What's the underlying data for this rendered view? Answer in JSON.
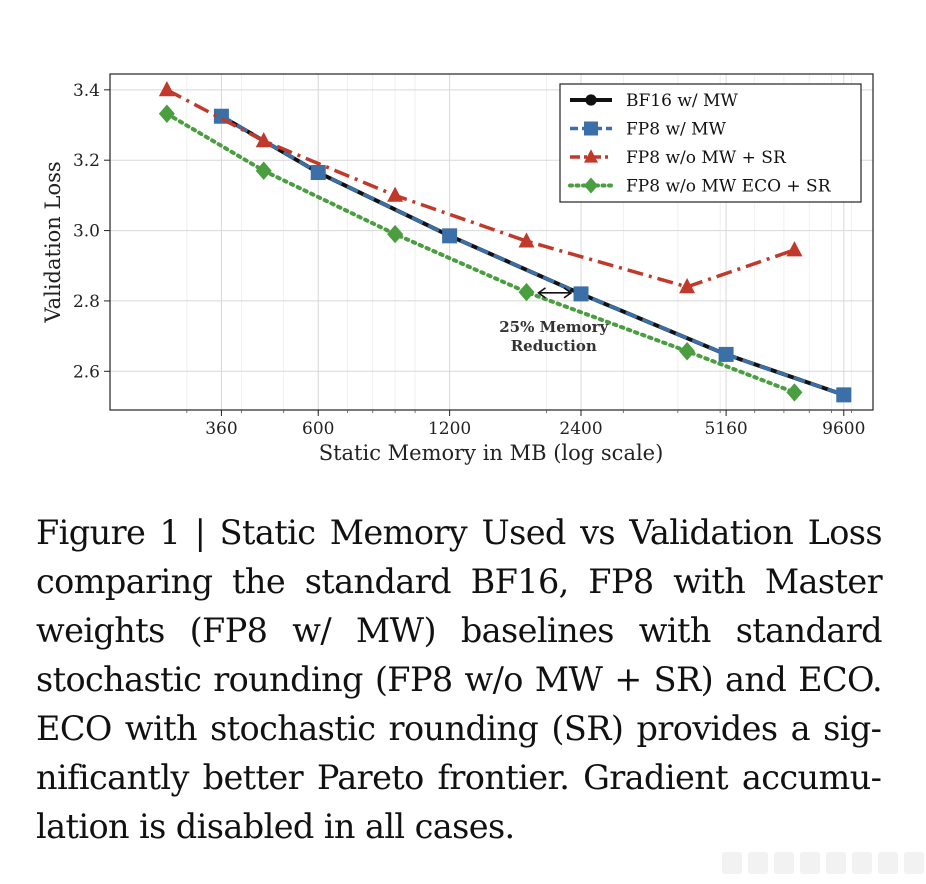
{
  "chart_data": {
    "type": "line",
    "xscale": "log",
    "xlabel": "Static Memory in MB (log scale)",
    "ylabel": "Validation Loss",
    "xticks": [
      360,
      600,
      1200,
      2400,
      5160,
      9600
    ],
    "xtick_labels": [
      "360",
      "600",
      "1200",
      "2400",
      "5160",
      "9600"
    ],
    "yticks": [
      2.6,
      2.8,
      3.0,
      3.2,
      3.4
    ],
    "ytick_labels": [
      "2.6",
      "2.8",
      "3.0",
      "3.2",
      "3.4"
    ],
    "xlim": [
      200,
      11200
    ],
    "ylim": [
      2.49,
      3.445
    ],
    "grid": true,
    "legend_position": "top-right",
    "series": [
      {
        "name": "BF16 w/ MW",
        "color": "#111111",
        "marker": "circle",
        "dash": "solid",
        "x": [
          360,
          600,
          1200,
          2400,
          5160,
          9600
        ],
        "y": [
          3.325,
          3.165,
          2.985,
          2.82,
          2.648,
          2.533
        ]
      },
      {
        "name": "FP8 w/ MW",
        "color": "#3a6fa7",
        "marker": "square",
        "dash": "dashed",
        "x": [
          360,
          600,
          1200,
          2400,
          5160,
          9600
        ],
        "y": [
          3.325,
          3.165,
          2.985,
          2.82,
          2.648,
          2.533
        ]
      },
      {
        "name": "FP8 w/o MW + SR",
        "color": "#c0392b",
        "marker": "triangle",
        "dash": "dashdot",
        "x": [
          270,
          450,
          900,
          1800,
          4200,
          7400
        ],
        "y": [
          3.4,
          3.255,
          3.1,
          2.97,
          2.84,
          2.945
        ]
      },
      {
        "name": "FP8 w/o MW ECO + SR",
        "color": "#4a9e3f",
        "marker": "diamond",
        "dash": "dotted",
        "x": [
          270,
          450,
          900,
          1800,
          4200,
          7400
        ],
        "y": [
          3.332,
          3.17,
          2.99,
          2.825,
          2.657,
          2.54
        ]
      }
    ],
    "annotations": [
      {
        "text_lines": [
          "25% Memory",
          "Reduction"
        ],
        "arrow_from": [
          1800,
          2.823
        ],
        "arrow_to": [
          2400,
          2.823
        ]
      }
    ]
  },
  "caption": {
    "label": "Figure 1",
    "separator": "|",
    "text": "Static Memory Used vs Validation Loss comparing the standard BF16, FP8 with Master weights (FP8 w/ MW) baselines with standard stochastic rounding (FP8 w/o MW + SR) and ECO. ECO with stochastic rounding (SR) provides a sig­nificantly better Pareto frontier. Gradient accumu­lation is disabled in all cases."
  }
}
